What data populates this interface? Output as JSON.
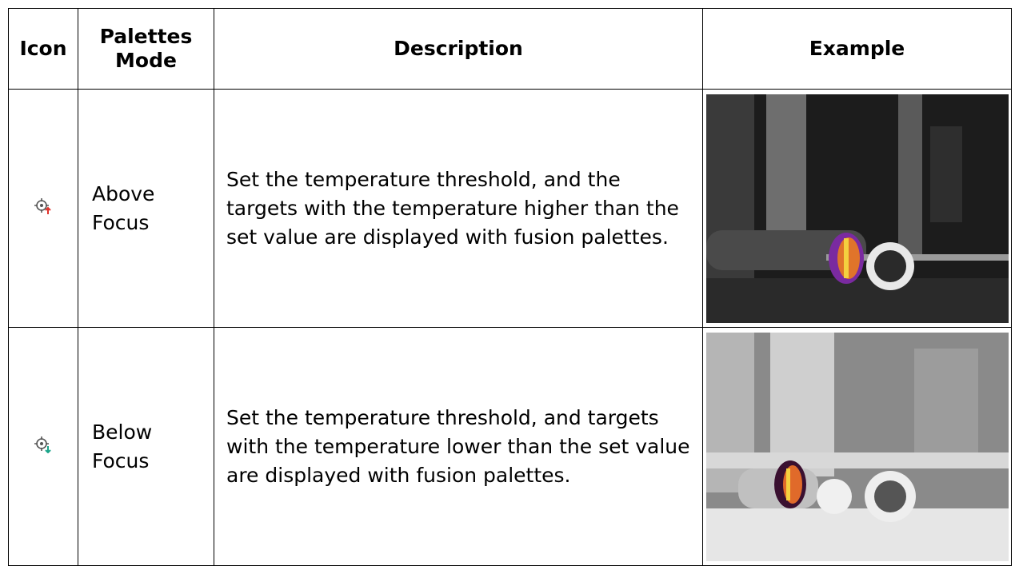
{
  "table": {
    "header": [
      "Icon",
      "Palettes Mode",
      "Description",
      "Example"
    ],
    "rows": [
      [
        "Above Focus",
        "Set the temperature threshold, and the targets with the temperature higher than the set value are displayed with fusion palettes."
      ],
      [
        "Below Focus",
        "Set the temperature threshold, and targets with the temperature lower than the set value are displayed with fusion palettes."
      ]
    ]
  }
}
